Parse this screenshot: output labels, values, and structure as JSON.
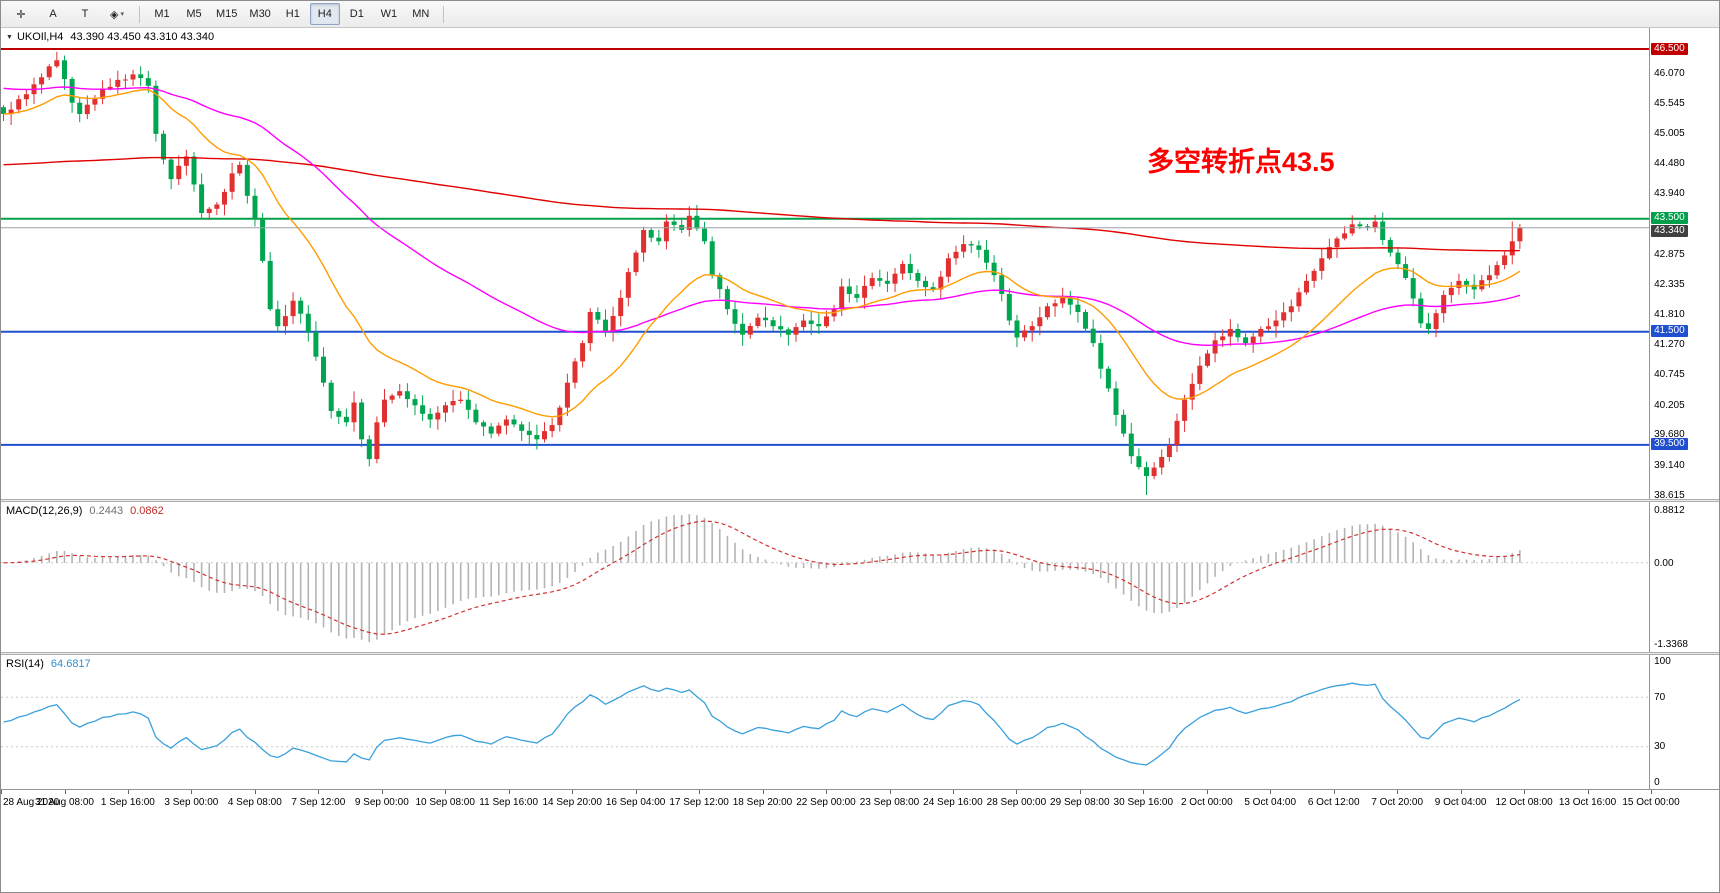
{
  "toolbar": {
    "tools": [
      {
        "id": "crosshair",
        "glyph": "✛"
      },
      {
        "id": "text",
        "glyph": "A"
      },
      {
        "id": "text-label",
        "glyph": "T"
      },
      {
        "id": "shapes",
        "glyph": "◈",
        "caret": "▾"
      }
    ],
    "timeframes": [
      "M1",
      "M5",
      "M15",
      "M30",
      "H1",
      "H4",
      "D1",
      "W1",
      "MN"
    ],
    "active_timeframe": "H4"
  },
  "chart_data": [
    {
      "type": "candlestick",
      "symbol": "UKOIl",
      "timeframe": "H4",
      "title": "UKOIl,H4",
      "ohlc_text": "43.390 43.450 43.310 43.340",
      "ohlc_display": {
        "open": "43.390",
        "high": "43.450",
        "low": "43.310",
        "close": "43.340"
      },
      "bars": 200,
      "ylim": [
        38.544,
        46.871
      ],
      "up_color": "#e03030",
      "down_color": "#00a64f",
      "close_keyframes": [
        [
          0,
          45.35
        ],
        [
          3,
          45.7
        ],
        [
          5,
          46.0
        ],
        [
          7,
          46.3
        ],
        [
          9,
          45.55
        ],
        [
          10,
          45.35
        ],
        [
          13,
          45.8
        ],
        [
          17,
          46.05
        ],
        [
          19,
          45.85
        ],
        [
          20,
          45.0
        ],
        [
          22,
          44.2
        ],
        [
          24,
          44.6
        ],
        [
          26,
          43.6
        ],
        [
          28,
          43.75
        ],
        [
          30,
          44.3
        ],
        [
          31,
          44.45
        ],
        [
          33,
          43.5
        ],
        [
          35,
          41.9
        ],
        [
          36,
          41.6
        ],
        [
          38,
          42.05
        ],
        [
          40,
          41.5
        ],
        [
          42,
          40.6
        ],
        [
          43,
          40.1
        ],
        [
          45,
          39.9
        ],
        [
          46,
          40.25
        ],
        [
          47,
          39.6
        ],
        [
          48,
          39.25
        ],
        [
          49,
          39.9
        ],
        [
          50,
          40.3
        ],
        [
          52,
          40.45
        ],
        [
          54,
          40.2
        ],
        [
          56,
          39.95
        ],
        [
          58,
          40.2
        ],
        [
          60,
          40.3
        ],
        [
          62,
          39.9
        ],
        [
          64,
          39.7
        ],
        [
          66,
          39.95
        ],
        [
          68,
          39.75
        ],
        [
          70,
          39.6
        ],
        [
          72,
          39.85
        ],
        [
          74,
          40.6
        ],
        [
          76,
          41.3
        ],
        [
          77,
          41.85
        ],
        [
          79,
          41.5
        ],
        [
          81,
          42.1
        ],
        [
          83,
          42.9
        ],
        [
          84,
          43.3
        ],
        [
          86,
          43.1
        ],
        [
          87,
          43.45
        ],
        [
          89,
          43.3
        ],
        [
          90,
          43.55
        ],
        [
          92,
          43.1
        ],
        [
          93,
          42.5
        ],
        [
          95,
          41.9
        ],
        [
          97,
          41.45
        ],
        [
          99,
          41.75
        ],
        [
          101,
          41.6
        ],
        [
          103,
          41.45
        ],
        [
          105,
          41.7
        ],
        [
          107,
          41.6
        ],
        [
          109,
          41.9
        ],
        [
          110,
          42.3
        ],
        [
          112,
          42.1
        ],
        [
          114,
          42.45
        ],
        [
          116,
          42.35
        ],
        [
          118,
          42.7
        ],
        [
          120,
          42.4
        ],
        [
          122,
          42.25
        ],
        [
          124,
          42.8
        ],
        [
          126,
          43.05
        ],
        [
          128,
          42.95
        ],
        [
          130,
          42.5
        ],
        [
          132,
          41.7
        ],
        [
          133,
          41.4
        ],
        [
          135,
          41.6
        ],
        [
          137,
          41.95
        ],
        [
          139,
          42.1
        ],
        [
          141,
          41.85
        ],
        [
          143,
          41.3
        ],
        [
          145,
          40.5
        ],
        [
          147,
          39.7
        ],
        [
          148,
          39.3
        ],
        [
          150,
          38.95
        ],
        [
          151,
          39.1
        ],
        [
          153,
          39.5
        ],
        [
          155,
          40.3
        ],
        [
          157,
          40.9
        ],
        [
          159,
          41.35
        ],
        [
          161,
          41.55
        ],
        [
          163,
          41.3
        ],
        [
          165,
          41.55
        ],
        [
          167,
          41.7
        ],
        [
          169,
          41.95
        ],
        [
          171,
          42.4
        ],
        [
          173,
          42.8
        ],
        [
          175,
          43.15
        ],
        [
          177,
          43.4
        ],
        [
          179,
          43.35
        ],
        [
          180,
          43.45
        ],
        [
          182,
          42.9
        ],
        [
          184,
          42.45
        ],
        [
          186,
          41.65
        ],
        [
          187,
          41.55
        ],
        [
          189,
          42.15
        ],
        [
          191,
          42.4
        ],
        [
          193,
          42.25
        ],
        [
          195,
          42.5
        ],
        [
          197,
          42.85
        ],
        [
          198,
          43.1
        ],
        [
          199,
          43.34
        ]
      ],
      "wick_extremes_high": [
        [
          7,
          46.45
        ],
        [
          90,
          43.72
        ],
        [
          177,
          43.56
        ],
        [
          198,
          43.45
        ]
      ],
      "wick_extremes_low": [
        [
          48,
          39.12
        ],
        [
          103,
          41.28
        ],
        [
          150,
          38.615
        ]
      ],
      "y_ticks": [
        "46.070",
        "45.545",
        "45.005",
        "44.480",
        "43.940",
        "42.875",
        "42.335",
        "41.810",
        "41.270",
        "40.745",
        "40.205",
        "39.680",
        "39.140",
        "38.615"
      ],
      "levels": [
        {
          "price": 46.5,
          "label": "46.500",
          "color": "#c00000",
          "width": 2
        },
        {
          "price": 43.5,
          "label": "43.500",
          "color": "#00a04a",
          "width": 2
        },
        {
          "price": 41.5,
          "label": "41.500",
          "color": "#2050d0",
          "width": 2
        },
        {
          "price": 39.5,
          "label": "39.500",
          "color": "#2050d0",
          "width": 2
        }
      ],
      "bid_line": {
        "price": 43.34,
        "label": "43.340",
        "line_color": "#9aa0a6",
        "badge_color": "#404040"
      },
      "moving_averages": [
        {
          "name": "ma-long-red",
          "color": "#e00000",
          "seed": 44.45,
          "alpha": 0.005
        },
        {
          "name": "ma-mid-magenta",
          "color": "#ff00ff",
          "seed": 45.82,
          "alpha": 0.032
        },
        {
          "name": "ma-short-orange",
          "color": "#ff9c00",
          "seed": 45.35,
          "alpha": 0.1
        }
      ],
      "annotation": {
        "text": "多空转折点43.5",
        "color": "#ff0000"
      },
      "x_labels": [
        "28 Aug 2020",
        "31 Aug 08:00",
        "1 Sep 16:00",
        "3 Sep 00:00",
        "4 Sep 08:00",
        "7 Sep 12:00",
        "9 Sep 00:00",
        "10 Sep 08:00",
        "11 Sep 16:00",
        "14 Sep 20:00",
        "16 Sep 04:00",
        "17 Sep 12:00",
        "18 Sep 20:00",
        "22 Sep 00:00",
        "23 Sep 08:00",
        "24 Sep 16:00",
        "28 Sep 00:00",
        "29 Sep 08:00",
        "30 Sep 16:00",
        "2 Oct 00:00",
        "5 Oct 04:00",
        "6 Oct 12:00",
        "7 Oct 20:00",
        "9 Oct 04:00",
        "12 Oct 08:00",
        "13 Oct 16:00",
        "15 Oct 00:00"
      ]
    },
    {
      "type": "macd-histogram",
      "label": "MACD(12,26,9)",
      "value_main": "0.2443",
      "value_signal": "0.0862",
      "params": {
        "fast": 12,
        "slow": 26,
        "signal": 9
      },
      "ylim": [
        -1.3368,
        0.8812
      ],
      "scale_labels": [
        "0.8812",
        "0.00",
        "-1.3368"
      ],
      "histogram_color": "#b4b4b4",
      "signal_color": "#d23333"
    },
    {
      "type": "rsi-line",
      "label": "RSI(14)",
      "value": "64.6817",
      "period": 14,
      "ylim": [
        0,
        100
      ],
      "scale_labels": [
        "100",
        "70",
        "30",
        "0"
      ],
      "level_lines": [
        70,
        30
      ],
      "line_color": "#3aa0dc"
    }
  ]
}
